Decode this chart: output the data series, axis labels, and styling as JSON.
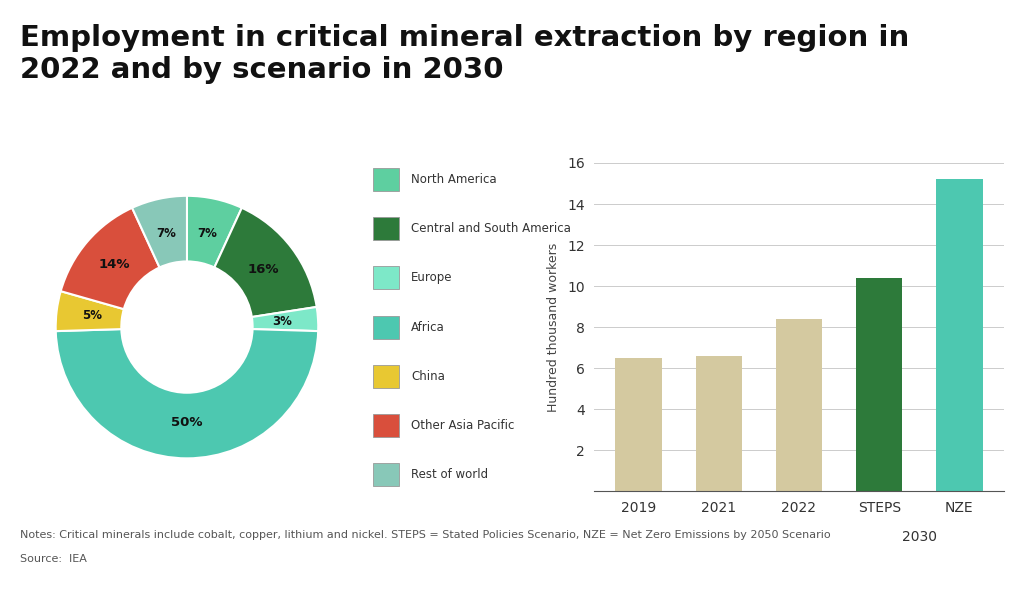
{
  "title": "Employment in critical mineral extraction by region in\n2022 and by scenario in 2030",
  "title_fontsize": 21,
  "background_color": "#ffffff",
  "pie_labels": [
    "North America",
    "Central and South America",
    "Europe",
    "Africa",
    "China",
    "Other Asia Pacific",
    "Rest of world"
  ],
  "pie_values": [
    7,
    16,
    3,
    50,
    5,
    14,
    7
  ],
  "pie_colors": [
    "#5ecfa0",
    "#2d7a3a",
    "#7de8c8",
    "#4dc8b0",
    "#e8c832",
    "#d94f3c",
    "#88c8b8"
  ],
  "pie_pct_labels": [
    "7%",
    "16%",
    "3%",
    "50%",
    "5%",
    "14%",
    "7%"
  ],
  "bar_categories": [
    "2019",
    "2021",
    "2022",
    "STEPS",
    "NZE"
  ],
  "bar_values": [
    6.5,
    6.6,
    8.4,
    10.4,
    15.2
  ],
  "bar_colors": [
    "#d4c9a0",
    "#d4c9a0",
    "#d4c9a0",
    "#2d7a3a",
    "#4dc8b0"
  ],
  "bar_ylabel": "Hundred thousand workers",
  "bar_ylim": [
    0,
    16
  ],
  "bar_yticks": [
    0,
    2,
    4,
    6,
    8,
    10,
    12,
    14,
    16
  ],
  "notes_line1": "Notes: Critical minerals include cobalt, copper, lithium and nickel. STEPS = Stated Policies Scenario, NZE = Net Zero Emissions by 2050 Scenario",
  "notes_line2": "Source:  IEA"
}
